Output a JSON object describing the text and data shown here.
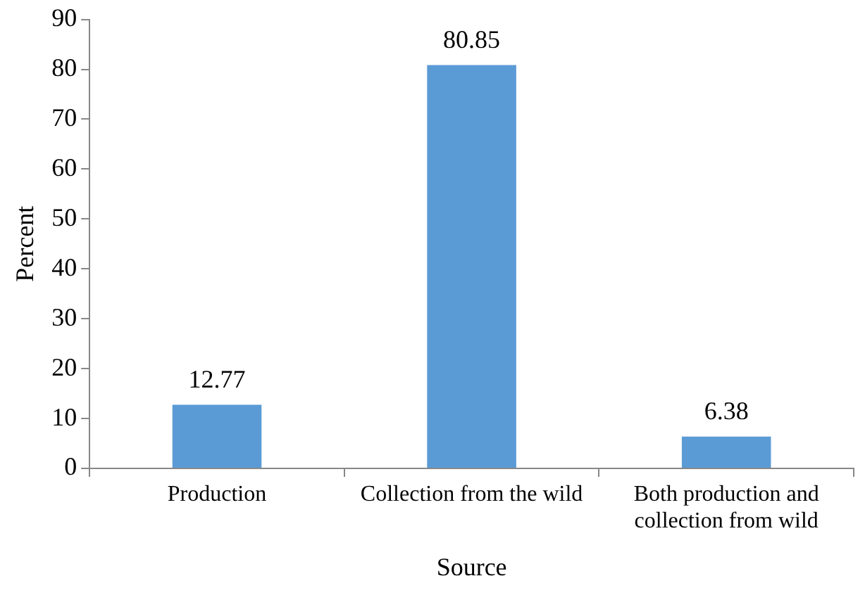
{
  "chart_data": {
    "type": "bar",
    "xlabel": "Source",
    "ylabel": "Percent",
    "categories": [
      "Production",
      "Collection from the wild",
      "Both production and collection from wild"
    ],
    "values": [
      12.77,
      80.85,
      6.38
    ],
    "color": "#5b9bd5",
    "ylim": [
      0,
      90
    ],
    "yticks": [
      0,
      10,
      20,
      30,
      40,
      50,
      60,
      70,
      80,
      90
    ],
    "grid": false,
    "legend": false,
    "data_labels": true
  }
}
